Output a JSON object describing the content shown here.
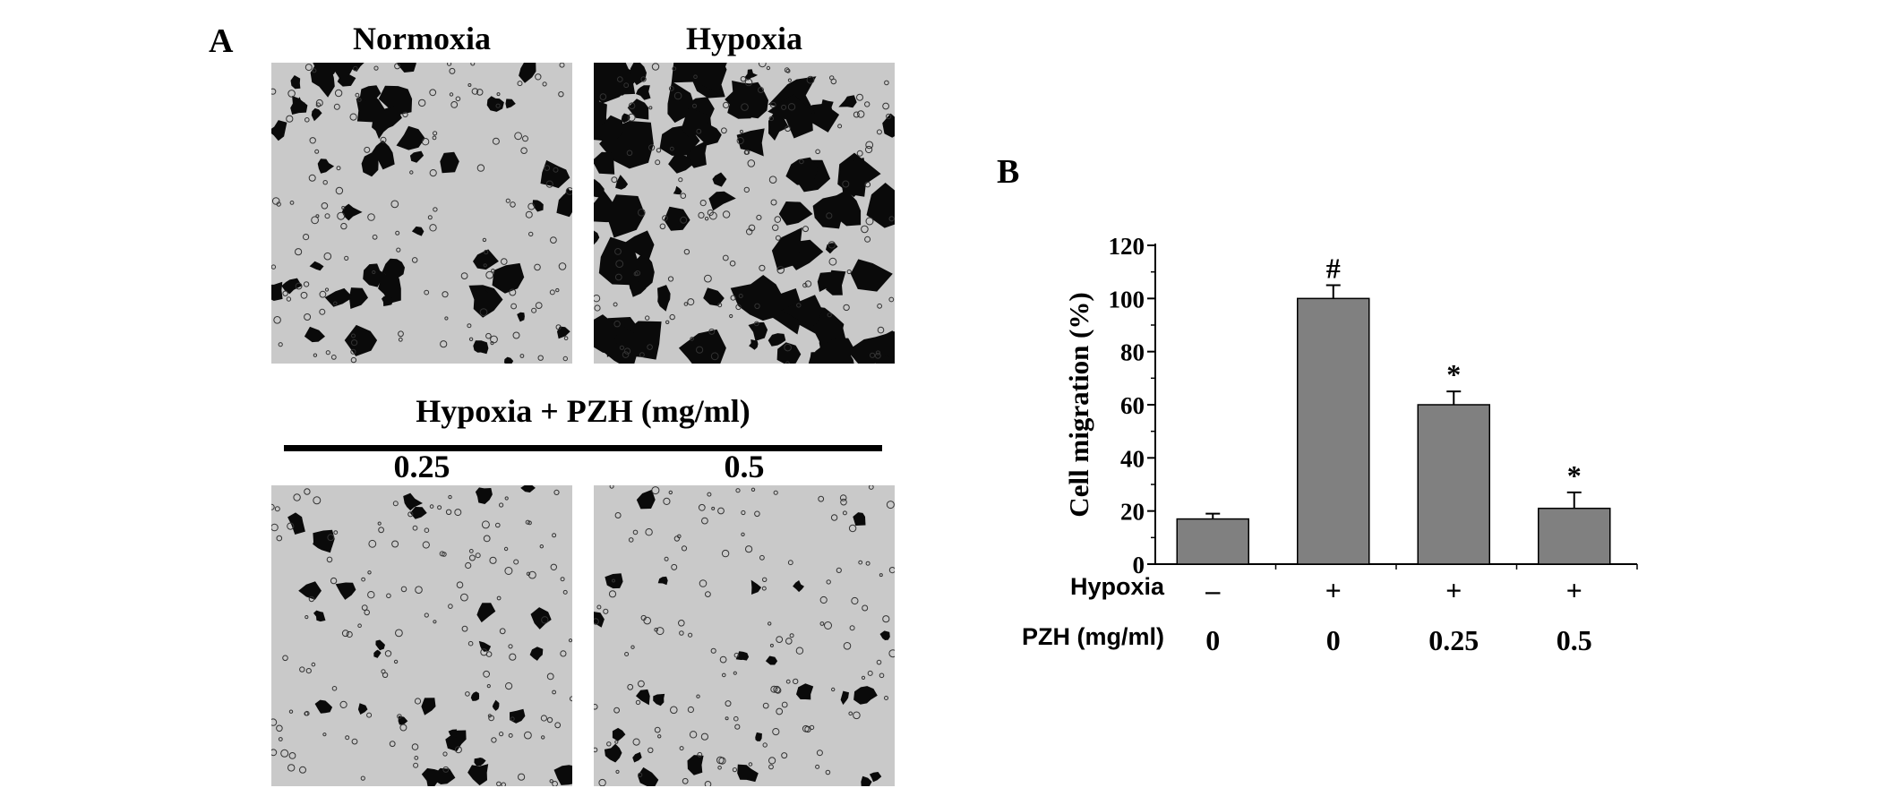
{
  "panel_a": {
    "letter": "A",
    "top_captions": [
      "Normoxia",
      "Hypoxia"
    ],
    "group_title": "Hypoxia + PZH (mg/ml)",
    "bottom_captions": [
      "0.25",
      "0.5"
    ],
    "images": [
      {
        "name": "normoxia",
        "dark_cell_density": 0.25
      },
      {
        "name": "hypoxia",
        "dark_cell_density": 0.55
      },
      {
        "name": "pzh-0.25",
        "dark_cell_density": 0.08
      },
      {
        "name": "pzh-0.5",
        "dark_cell_density": 0.03
      }
    ],
    "colors": {
      "background": "#c9c9c9",
      "cells": "#0a0a0a"
    }
  },
  "panel_b": {
    "letter": "B"
  },
  "chart_data": {
    "type": "bar",
    "ylabel": "Cell migration (%)",
    "ylim": [
      0,
      120
    ],
    "yticks": [
      0,
      20,
      40,
      60,
      80,
      100,
      120
    ],
    "values": [
      17,
      100,
      60,
      21
    ],
    "errors": [
      2,
      5,
      5,
      6
    ],
    "annotations": [
      "",
      "#",
      "*",
      "*"
    ],
    "rows": [
      {
        "label": "Hypoxia",
        "values": [
          "–",
          "+",
          "+",
          "+"
        ]
      },
      {
        "label": "PZH (mg/ml)",
        "values": [
          "0",
          "0",
          "0.25",
          "0.5"
        ]
      }
    ],
    "bar_color": "#808080",
    "grid": false
  }
}
